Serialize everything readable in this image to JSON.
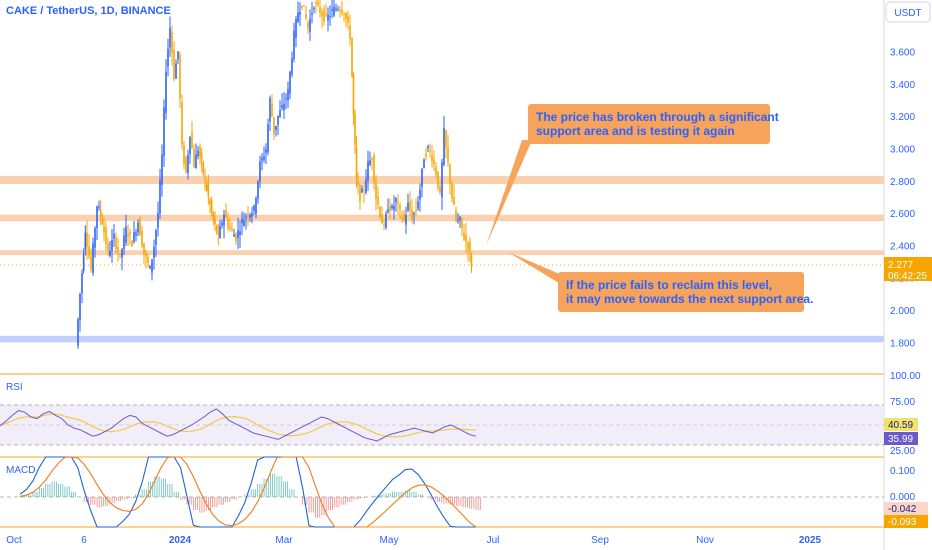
{
  "header": {
    "symbol_line": "CAKE / TetherUS, 1D, BINANCE",
    "currency": "USDT"
  },
  "colors": {
    "up": "#2962ff",
    "down": "#f7a600",
    "zone_orange": "#f9c9a1",
    "zone_blue": "#b7c9fb",
    "rsi_line": "#6a5acd",
    "rsi_ma": "#f2c94c",
    "macd_line": "#1e63d8",
    "signal_line": "#f07c1b",
    "callout_bg": "#f7a35c",
    "callout_text": "#2962ff",
    "panel_border": "#f5a623"
  },
  "price_axis": {
    "ticks": [
      "3.600",
      "3.400",
      "3.200",
      "3.000",
      "2.800",
      "2.600",
      "2.400",
      "2.200",
      "2.000",
      "1.800"
    ]
  },
  "last_price": {
    "value": "2.277",
    "countdown": "06:42:25"
  },
  "time_axis": {
    "labels": [
      "Oct",
      "6",
      "2024",
      "Mar",
      "May",
      "Jul",
      "Sep",
      "Nov",
      "2025"
    ]
  },
  "annotations": [
    {
      "text_lines": [
        "The price has broken through a significant",
        "support area and is testing it again"
      ]
    },
    {
      "text_lines": [
        "If the price fails to reclaim this level,",
        "it may move towards the next support area."
      ]
    }
  ],
  "rsi": {
    "label": "RSI",
    "ticks": [
      "100.00",
      "75.00",
      "25.00"
    ],
    "value": "40.59",
    "ma_value": "35.99"
  },
  "macd": {
    "label": "MACD",
    "ticks": [
      "0.100",
      "0.000"
    ],
    "macd_value": "-0.042",
    "signal_value": "-0.093"
  },
  "chart_data": {
    "type": "candlestick",
    "title": "CAKE / TetherUS, 1D, BINANCE",
    "ylabel": "USDT",
    "ylim": [
      1.69,
      3.93
    ],
    "x_range": [
      "Oct 2023",
      "Jan 2025"
    ],
    "zones": [
      {
        "kind": "resistance",
        "low": 2.78,
        "high": 2.83
      },
      {
        "kind": "resistance",
        "low": 2.55,
        "high": 2.59
      },
      {
        "kind": "support",
        "low": 2.34,
        "high": 2.37
      },
      {
        "kind": "support",
        "low": 1.8,
        "high": 1.84
      }
    ],
    "close_path": [
      {
        "x": 78,
        "y": 1.78
      },
      {
        "x": 82,
        "y": 2.1
      },
      {
        "x": 87,
        "y": 2.5
      },
      {
        "x": 93,
        "y": 2.25
      },
      {
        "x": 99,
        "y": 2.65
      },
      {
        "x": 104,
        "y": 2.55
      },
      {
        "x": 110,
        "y": 2.35
      },
      {
        "x": 116,
        "y": 2.45
      },
      {
        "x": 122,
        "y": 2.32
      },
      {
        "x": 128,
        "y": 2.5
      },
      {
        "x": 134,
        "y": 2.42
      },
      {
        "x": 140,
        "y": 2.55
      },
      {
        "x": 146,
        "y": 2.35
      },
      {
        "x": 152,
        "y": 2.25
      },
      {
        "x": 156,
        "y": 2.4
      },
      {
        "x": 160,
        "y": 2.6
      },
      {
        "x": 164,
        "y": 2.95
      },
      {
        "x": 168,
        "y": 3.5
      },
      {
        "x": 172,
        "y": 3.75
      },
      {
        "x": 176,
        "y": 3.45
      },
      {
        "x": 180,
        "y": 3.6
      },
      {
        "x": 184,
        "y": 3.0
      },
      {
        "x": 188,
        "y": 2.85
      },
      {
        "x": 192,
        "y": 3.1
      },
      {
        "x": 196,
        "y": 2.9
      },
      {
        "x": 200,
        "y": 3.0
      },
      {
        "x": 205,
        "y": 2.85
      },
      {
        "x": 210,
        "y": 2.7
      },
      {
        "x": 215,
        "y": 2.55
      },
      {
        "x": 220,
        "y": 2.45
      },
      {
        "x": 226,
        "y": 2.6
      },
      {
        "x": 232,
        "y": 2.5
      },
      {
        "x": 238,
        "y": 2.45
      },
      {
        "x": 244,
        "y": 2.55
      },
      {
        "x": 250,
        "y": 2.6
      },
      {
        "x": 256,
        "y": 2.62
      },
      {
        "x": 262,
        "y": 2.9
      },
      {
        "x": 268,
        "y": 3.0
      },
      {
        "x": 272,
        "y": 3.3
      },
      {
        "x": 276,
        "y": 3.1
      },
      {
        "x": 280,
        "y": 3.2
      },
      {
        "x": 284,
        "y": 3.25
      },
      {
        "x": 290,
        "y": 3.35
      },
      {
        "x": 296,
        "y": 3.7
      },
      {
        "x": 300,
        "y": 3.85
      },
      {
        "x": 304,
        "y": 3.9
      },
      {
        "x": 310,
        "y": 3.75
      },
      {
        "x": 316,
        "y": 3.9
      },
      {
        "x": 322,
        "y": 3.85
      },
      {
        "x": 328,
        "y": 3.8
      },
      {
        "x": 334,
        "y": 3.85
      },
      {
        "x": 340,
        "y": 3.88
      },
      {
        "x": 346,
        "y": 3.85
      },
      {
        "x": 352,
        "y": 3.7
      },
      {
        "x": 355,
        "y": 3.2
      },
      {
        "x": 358,
        "y": 2.8
      },
      {
        "x": 362,
        "y": 2.7
      },
      {
        "x": 366,
        "y": 2.75
      },
      {
        "x": 370,
        "y": 2.9
      },
      {
        "x": 374,
        "y": 2.95
      },
      {
        "x": 378,
        "y": 2.7
      },
      {
        "x": 382,
        "y": 2.6
      },
      {
        "x": 386,
        "y": 2.5
      },
      {
        "x": 390,
        "y": 2.65
      },
      {
        "x": 394,
        "y": 2.62
      },
      {
        "x": 398,
        "y": 2.68
      },
      {
        "x": 402,
        "y": 2.6
      },
      {
        "x": 406,
        "y": 2.55
      },
      {
        "x": 410,
        "y": 2.65
      },
      {
        "x": 414,
        "y": 2.58
      },
      {
        "x": 418,
        "y": 2.62
      },
      {
        "x": 422,
        "y": 2.75
      },
      {
        "x": 426,
        "y": 2.95
      },
      {
        "x": 430,
        "y": 3.0
      },
      {
        "x": 434,
        "y": 2.95
      },
      {
        "x": 438,
        "y": 2.85
      },
      {
        "x": 442,
        "y": 2.7
      },
      {
        "x": 446,
        "y": 3.1
      },
      {
        "x": 450,
        "y": 2.9
      },
      {
        "x": 454,
        "y": 2.7
      },
      {
        "x": 458,
        "y": 2.55
      },
      {
        "x": 462,
        "y": 2.55
      },
      {
        "x": 466,
        "y": 2.45
      },
      {
        "x": 470,
        "y": 2.4
      },
      {
        "x": 473,
        "y": 2.28
      }
    ],
    "rsi_values": [
      49,
      55,
      62,
      68,
      66,
      60,
      58,
      64,
      67,
      62,
      58,
      50,
      46,
      44,
      40,
      36,
      38,
      42,
      46,
      52,
      58,
      62,
      60,
      52,
      48,
      44,
      40,
      36,
      38,
      42,
      46,
      50,
      55,
      60,
      66,
      70,
      64,
      56,
      52,
      48,
      44,
      40,
      38,
      36,
      34,
      32,
      36,
      40,
      44,
      48,
      52,
      56,
      60,
      58,
      54,
      50,
      46,
      42,
      38,
      34,
      32,
      30,
      34,
      38,
      40,
      42,
      44,
      46,
      44,
      42,
      40,
      44,
      48,
      50,
      46,
      42,
      38,
      36
    ],
    "macd_hist": [
      0.005,
      0.01,
      0.02,
      0.035,
      0.05,
      0.06,
      0.05,
      0.04,
      0.02,
      0.0,
      -0.02,
      -0.03,
      -0.04,
      -0.035,
      -0.025,
      -0.015,
      -0.01,
      -0.005,
      0.01,
      0.03,
      0.06,
      0.08,
      0.07,
      0.05,
      0.02,
      -0.01,
      -0.03,
      -0.05,
      -0.06,
      -0.05,
      -0.04,
      -0.03,
      -0.02,
      -0.01,
      0.0,
      0.01,
      0.03,
      0.05,
      0.07,
      0.09,
      0.08,
      0.06,
      0.03,
      0.0,
      -0.03,
      -0.06,
      -0.08,
      -0.07,
      -0.05,
      -0.04,
      -0.03,
      -0.02,
      -0.01,
      -0.005,
      0.0,
      0.005,
      0.01,
      0.015,
      0.02,
      0.02,
      0.025,
      0.02,
      0.01,
      0.0,
      -0.01,
      -0.02,
      -0.025,
      -0.03,
      -0.035,
      -0.04,
      -0.045,
      -0.05
    ]
  }
}
